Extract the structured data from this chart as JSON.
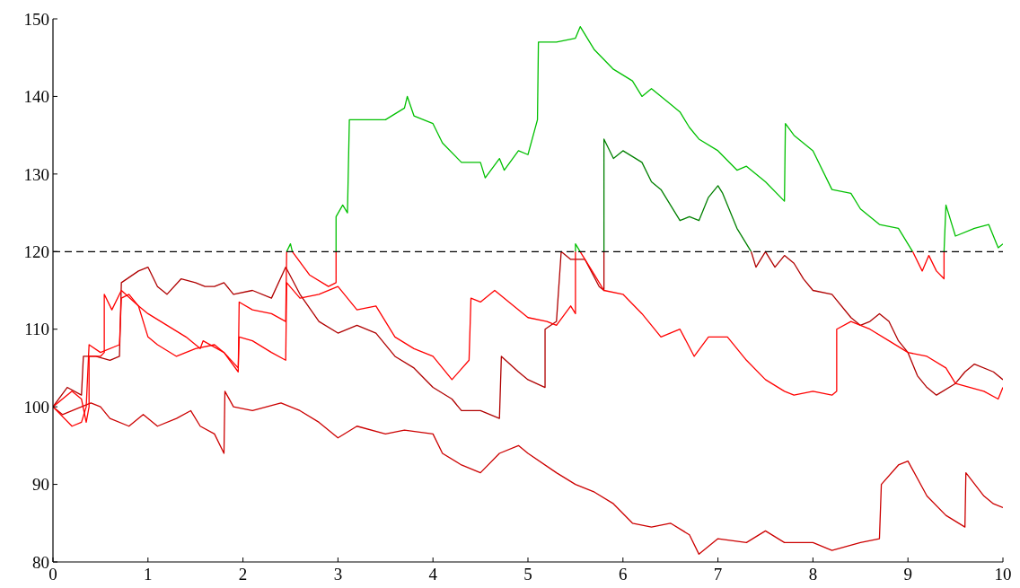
{
  "chart_data": {
    "type": "line",
    "xlim": [
      0,
      10
    ],
    "ylim": [
      80,
      150
    ],
    "xticks": [
      0,
      1,
      2,
      3,
      4,
      5,
      6,
      7,
      8,
      9,
      10
    ],
    "yticks": [
      80,
      90,
      100,
      110,
      120,
      130,
      140,
      150
    ],
    "grid": false,
    "marker": "none",
    "line_style": "solid",
    "ref_lines": [
      {
        "axis": "y",
        "value": 120,
        "color": "#000000",
        "line_style": "dashed"
      }
    ],
    "series": [
      {
        "color": "#cc0000",
        "x": [
          0,
          0.1,
          0.3,
          0.4,
          0.5,
          0.6,
          0.8,
          0.95,
          1.1,
          1.3,
          1.45,
          1.55,
          1.7,
          1.8,
          1.81,
          1.9,
          2.1,
          2.4,
          2.6,
          2.8,
          3.0,
          3.2,
          3.5,
          3.7,
          4.0,
          4.1,
          4.3,
          4.5,
          4.7,
          4.9,
          5.0,
          5.3,
          5.5,
          5.7,
          5.9,
          6.1,
          6.3,
          6.5,
          6.7,
          6.8,
          7.0,
          7.3,
          7.5,
          7.7,
          8.0,
          8.2,
          8.5,
          8.7,
          8.72,
          8.9,
          9.0,
          9.2,
          9.4,
          9.6,
          9.61,
          9.8,
          9.9,
          10
        ],
        "values": [
          100,
          99,
          100,
          100.5,
          100,
          98.5,
          97.5,
          99,
          97.5,
          98.5,
          99.5,
          97.5,
          96.5,
          94,
          102,
          100,
          99.5,
          100.5,
          99.5,
          98,
          96,
          97.5,
          96.5,
          97,
          96.5,
          94,
          92.5,
          91.5,
          94,
          95,
          94,
          91.5,
          90,
          89,
          87.5,
          85,
          84.5,
          85,
          83.5,
          81,
          83,
          82.5,
          84,
          82.5,
          82.5,
          81.5,
          82.5,
          83,
          90,
          92.5,
          93,
          88.5,
          86,
          84.5,
          91.5,
          88.5,
          87.5,
          87
        ]
      },
      {
        "color": "#b00000",
        "x": [
          0,
          0.15,
          0.3,
          0.32,
          0.45,
          0.6,
          0.7,
          0.72,
          0.9,
          1.0,
          1.1,
          1.2,
          1.35,
          1.5,
          1.6,
          1.7,
          1.8,
          1.9,
          2.1,
          2.3,
          2.45,
          2.6,
          2.8,
          3.0,
          3.2,
          3.4,
          3.6,
          3.8,
          4.0,
          4.2,
          4.3,
          4.5,
          4.7,
          4.72,
          4.9,
          5.0,
          5.18,
          5.18,
          5.3,
          5.35,
          5.45,
          5.6,
          5.75,
          5.8,
          5.8
        ],
        "values": [
          100,
          102.5,
          101.5,
          106.5,
          106.5,
          106,
          106.5,
          116,
          117.5,
          118,
          115.5,
          114.5,
          116.5,
          116,
          115.5,
          115.5,
          116,
          114.5,
          115,
          114,
          118,
          114.5,
          111,
          109.5,
          110.5,
          109.5,
          106.5,
          105,
          102.5,
          101,
          99.5,
          99.5,
          98.5,
          106.5,
          104.5,
          103.5,
          102.5,
          110,
          111,
          120,
          119,
          119,
          115.5,
          115,
          120
        ]
      },
      {
        "color": "#008000",
        "x": [
          5.8,
          5.8,
          5.9,
          6.0,
          6.2,
          6.3,
          6.4,
          6.6,
          6.7,
          6.8,
          6.9,
          7.0,
          7.05,
          7.2,
          7.35
        ],
        "values": [
          120,
          134.5,
          132,
          133,
          131.5,
          129,
          128,
          124,
          124.5,
          124,
          127,
          128.5,
          127.5,
          123,
          120
        ]
      },
      {
        "color": "#b00000",
        "x": [
          7.35,
          7.4,
          7.5,
          7.6,
          7.7,
          7.8,
          7.9,
          8.0,
          8.2,
          8.4,
          8.5,
          8.6,
          8.7,
          8.8,
          8.9,
          9.0,
          9.1,
          9.2,
          9.3,
          9.5,
          9.6,
          9.7,
          9.9,
          10
        ],
        "values": [
          120,
          118,
          120,
          118,
          119.5,
          118.5,
          116.5,
          115,
          114.5,
          111.5,
          110.5,
          111,
          112,
          111,
          108.5,
          107,
          104,
          102.5,
          101.5,
          103,
          104.5,
          105.5,
          104.5,
          103.5
        ]
      },
      {
        "color": "#ff0000",
        "x": [
          0,
          0.2,
          0.3,
          0.35,
          0.38,
          0.5,
          0.7,
          0.72,
          0.8,
          0.9,
          1.0,
          1.1,
          1.3,
          1.5,
          1.7,
          1.8,
          1.95,
          1.96,
          2.1,
          2.3,
          2.45,
          2.46,
          2.6,
          2.8,
          3.0,
          3.2,
          3.4,
          3.6,
          3.8,
          4.0,
          4.2,
          4.38,
          4.4,
          4.5,
          4.65,
          4.8,
          5.0,
          5.2,
          5.3,
          5.45,
          5.5,
          5.5
        ],
        "values": [
          100,
          97.5,
          98,
          100,
          108,
          107,
          108,
          114,
          114.5,
          113,
          109,
          108,
          106.5,
          107.5,
          108,
          107,
          105,
          109,
          108.5,
          107,
          106,
          116,
          114,
          114.5,
          115.5,
          112.5,
          113,
          109,
          107.5,
          106.5,
          103.5,
          106,
          114,
          113.5,
          115,
          113.5,
          111.5,
          111,
          110.5,
          113,
          112,
          120
        ]
      },
      {
        "color": "#00c000",
        "x": [
          5.5,
          5.5,
          5.55
        ],
        "values": [
          120,
          121,
          120
        ]
      },
      {
        "color": "#ff0000",
        "x": [
          5.55,
          5.7,
          5.8,
          6.0,
          6.2,
          6.4,
          6.6,
          6.75,
          6.9,
          7.1,
          7.3,
          7.5,
          7.7,
          7.8,
          8.0,
          8.2,
          8.25,
          8.25,
          8.4,
          8.6,
          8.8,
          9.0,
          9.2,
          9.4,
          9.5,
          9.8,
          9.95,
          10
        ],
        "values": [
          120,
          117,
          115,
          114.5,
          112,
          109,
          110,
          106.5,
          109,
          109,
          106,
          103.5,
          102,
          101.5,
          102,
          101.5,
          102,
          110,
          111,
          110,
          108.5,
          107,
          106.5,
          105,
          103,
          102,
          101,
          102.5
        ]
      },
      {
        "color": "#ff0000",
        "x": [
          0,
          0.2,
          0.3,
          0.35,
          0.38,
          0.38,
          0.5,
          0.54,
          0.54,
          0.62,
          0.72,
          0.9,
          1.0,
          1.2,
          1.4,
          1.55,
          1.58,
          1.8,
          1.95,
          1.96,
          2.1,
          2.3,
          2.45,
          2.46
        ],
        "values": [
          100,
          102,
          101,
          98,
          100,
          106.5,
          106.5,
          107,
          114.5,
          112.5,
          115,
          113,
          112,
          110.5,
          109,
          107.5,
          108.5,
          107,
          104.5,
          113.5,
          112.5,
          112,
          111,
          120
        ]
      },
      {
        "color": "#00c000",
        "x": [
          2.46,
          2.5,
          2.52
        ],
        "values": [
          120,
          121,
          120
        ]
      },
      {
        "color": "#ff0000",
        "x": [
          2.52,
          2.7,
          2.9,
          2.98,
          2.98
        ],
        "values": [
          120,
          117,
          115.5,
          116,
          120
        ]
      },
      {
        "color": "#00c000",
        "x": [
          2.98,
          2.98,
          3.05,
          3.1,
          3.12,
          3.3,
          3.5,
          3.7,
          3.73,
          3.8,
          4.0,
          4.1,
          4.3,
          4.5,
          4.55,
          4.7,
          4.75,
          4.9,
          5.0,
          5.1,
          5.11,
          5.3,
          5.5,
          5.55,
          5.7,
          5.9,
          6.1,
          6.2,
          6.3,
          6.5,
          6.6,
          6.7,
          6.8,
          7.0,
          7.2,
          7.3,
          7.5,
          7.7,
          7.71,
          7.8,
          8.0,
          8.2,
          8.4,
          8.5,
          8.7,
          8.9,
          9.05
        ],
        "values": [
          120,
          124.5,
          126,
          125,
          137,
          137,
          137,
          138.5,
          140,
          137.5,
          136.5,
          134,
          131.5,
          131.5,
          129.5,
          132,
          130.5,
          133,
          132.5,
          137,
          147,
          147,
          147.5,
          149,
          146,
          143.5,
          142,
          140,
          141,
          139,
          138,
          136,
          134.5,
          133,
          130.5,
          131,
          129,
          126.5,
          136.5,
          135,
          133,
          128,
          127.5,
          125.5,
          123.5,
          123,
          120
        ]
      },
      {
        "color": "#ff0000",
        "x": [
          9.05,
          9.15,
          9.22,
          9.3,
          9.38,
          9.38
        ],
        "values": [
          120,
          117.5,
          119.5,
          117.5,
          116.5,
          120
        ]
      },
      {
        "color": "#00c000",
        "x": [
          9.38,
          9.4,
          9.5,
          9.7,
          9.85,
          9.95,
          10
        ],
        "values": [
          120,
          126,
          122,
          123,
          123.5,
          120.5,
          121
        ]
      }
    ]
  }
}
